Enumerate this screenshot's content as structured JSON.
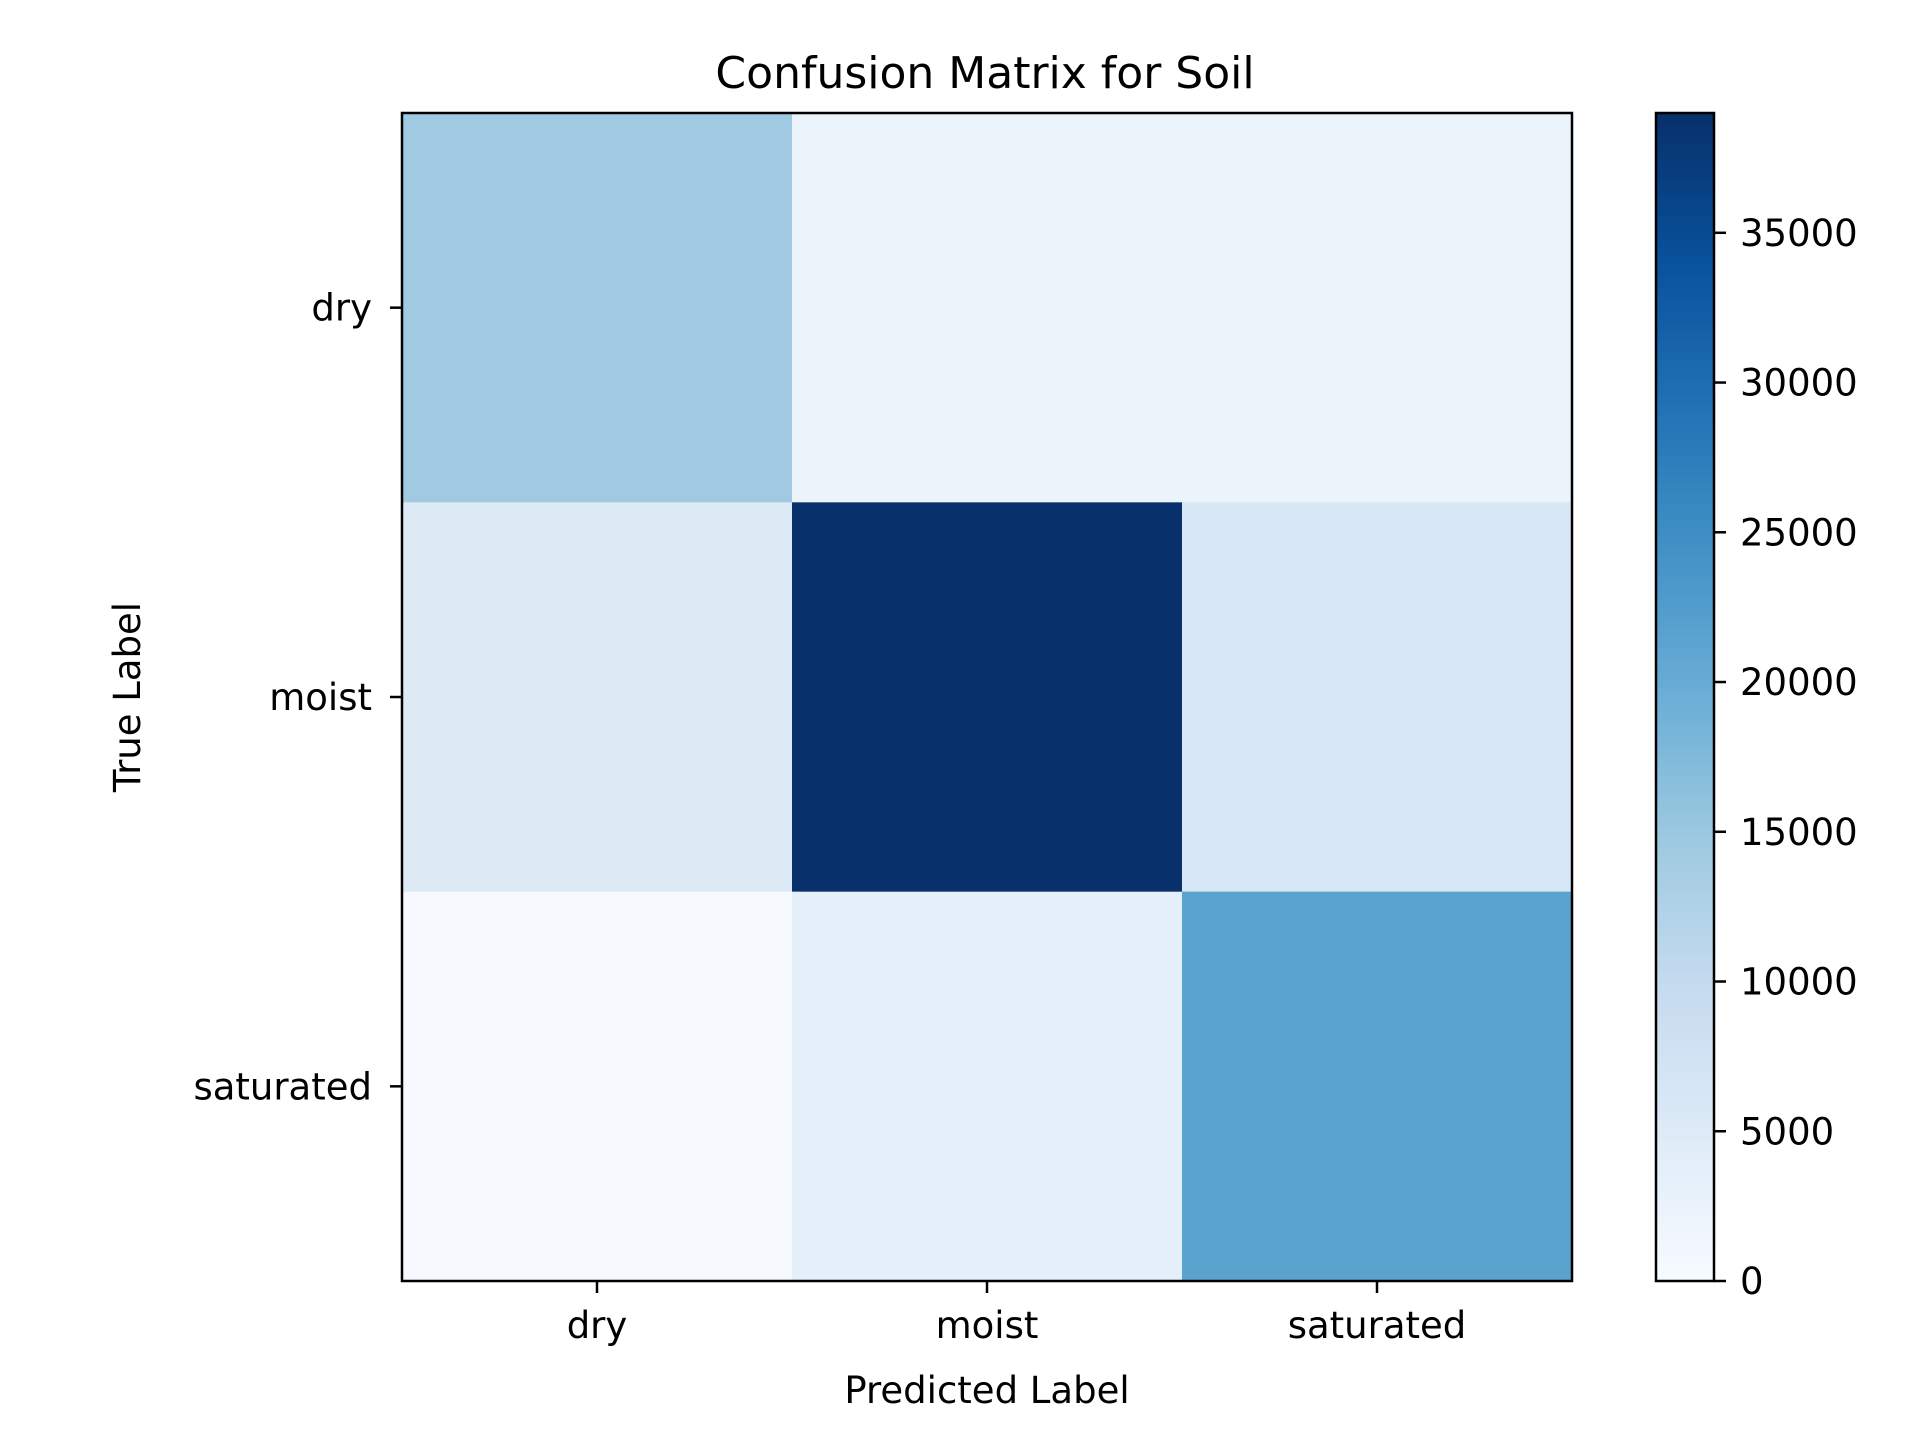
{
  "chart_data": {
    "type": "heatmap",
    "title": "Confusion Matrix for Soil",
    "xlabel": "Predicted Label",
    "ylabel": "True Label",
    "x_categories": [
      "dry",
      "moist",
      "saturated"
    ],
    "y_categories": [
      "dry",
      "moist",
      "saturated"
    ],
    "values": [
      [
        14500,
        2300,
        2300
      ],
      [
        5200,
        39000,
        6200
      ],
      [
        200,
        3700,
        21500
      ]
    ],
    "colorbar": {
      "range": [
        0,
        39000
      ],
      "ticks": [
        0,
        5000,
        10000,
        15000,
        20000,
        25000,
        30000,
        35000
      ],
      "tick_labels": [
        "0",
        "5000",
        "10000",
        "15000",
        "20000",
        "25000",
        "30000",
        "35000"
      ],
      "colormap": "Blues"
    },
    "grid": false,
    "legend": "colorbar-right"
  }
}
